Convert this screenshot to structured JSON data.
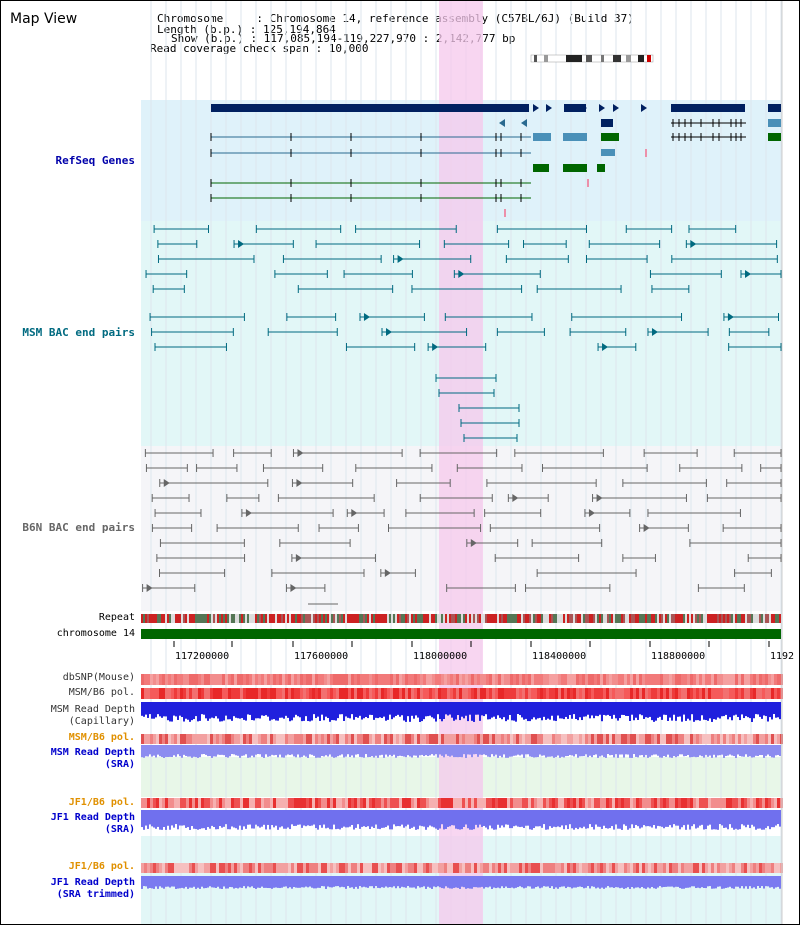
{
  "window": {
    "title": "Map View"
  },
  "info": {
    "line1": "Chromosome     : Chromosome 14, reference assembly (C57BL/6J) (Build 37)",
    "line2": "Length (b.p.) : 125,194,864",
    "line3": "Show (b.p.) : 117,085,194-119,227,970 : 2,142,777 bp",
    "line4": "Read coverage check span : 10,000"
  },
  "tracks": {
    "refseq": "RefSeq Genes",
    "msm_bac": "MSM BAC end pairs",
    "b6n_bac": "B6N BAC end pairs",
    "repeat": "Repeat",
    "chromosome": "chromosome 14",
    "dbsnp": "dbSNP(Mouse)",
    "msm_b6_pol1": "MSM/B6 pol.",
    "msm_read_cap_1": "MSM Read Depth",
    "msm_read_cap_2": "(Capillary)",
    "msm_b6_pol2": "MSM/B6 pol.",
    "msm_read_sra_1": "MSM Read Depth",
    "msm_read_sra_2": "(SRA)",
    "jf1_pol1": "JF1/B6 pol.",
    "jf1_read_1": "JF1 Read Depth",
    "jf1_read_2": "(SRA)",
    "jf1_pol2": "JF1/B6 pol.",
    "jf1_trim_1": "JF1 Read Depth",
    "jf1_trim_2": "(SRA trimmed)"
  },
  "axis": {
    "ticks": [
      "117200000",
      "117600000",
      "118000000",
      "118400000",
      "118800000",
      "1192"
    ]
  },
  "colors": {
    "refseq_bg": "#dff2fa",
    "msm_bg": "#e2f7f7",
    "b6n_bg": "#f5f5f8",
    "highlight": "#f6c8ec",
    "chromosome": "#006600",
    "refseq_label": "#0000aa",
    "msm_label": "#006a80",
    "b6n_label": "#666666",
    "pol_orange": "#e09000",
    "read_blue": "#0000cc"
  }
}
